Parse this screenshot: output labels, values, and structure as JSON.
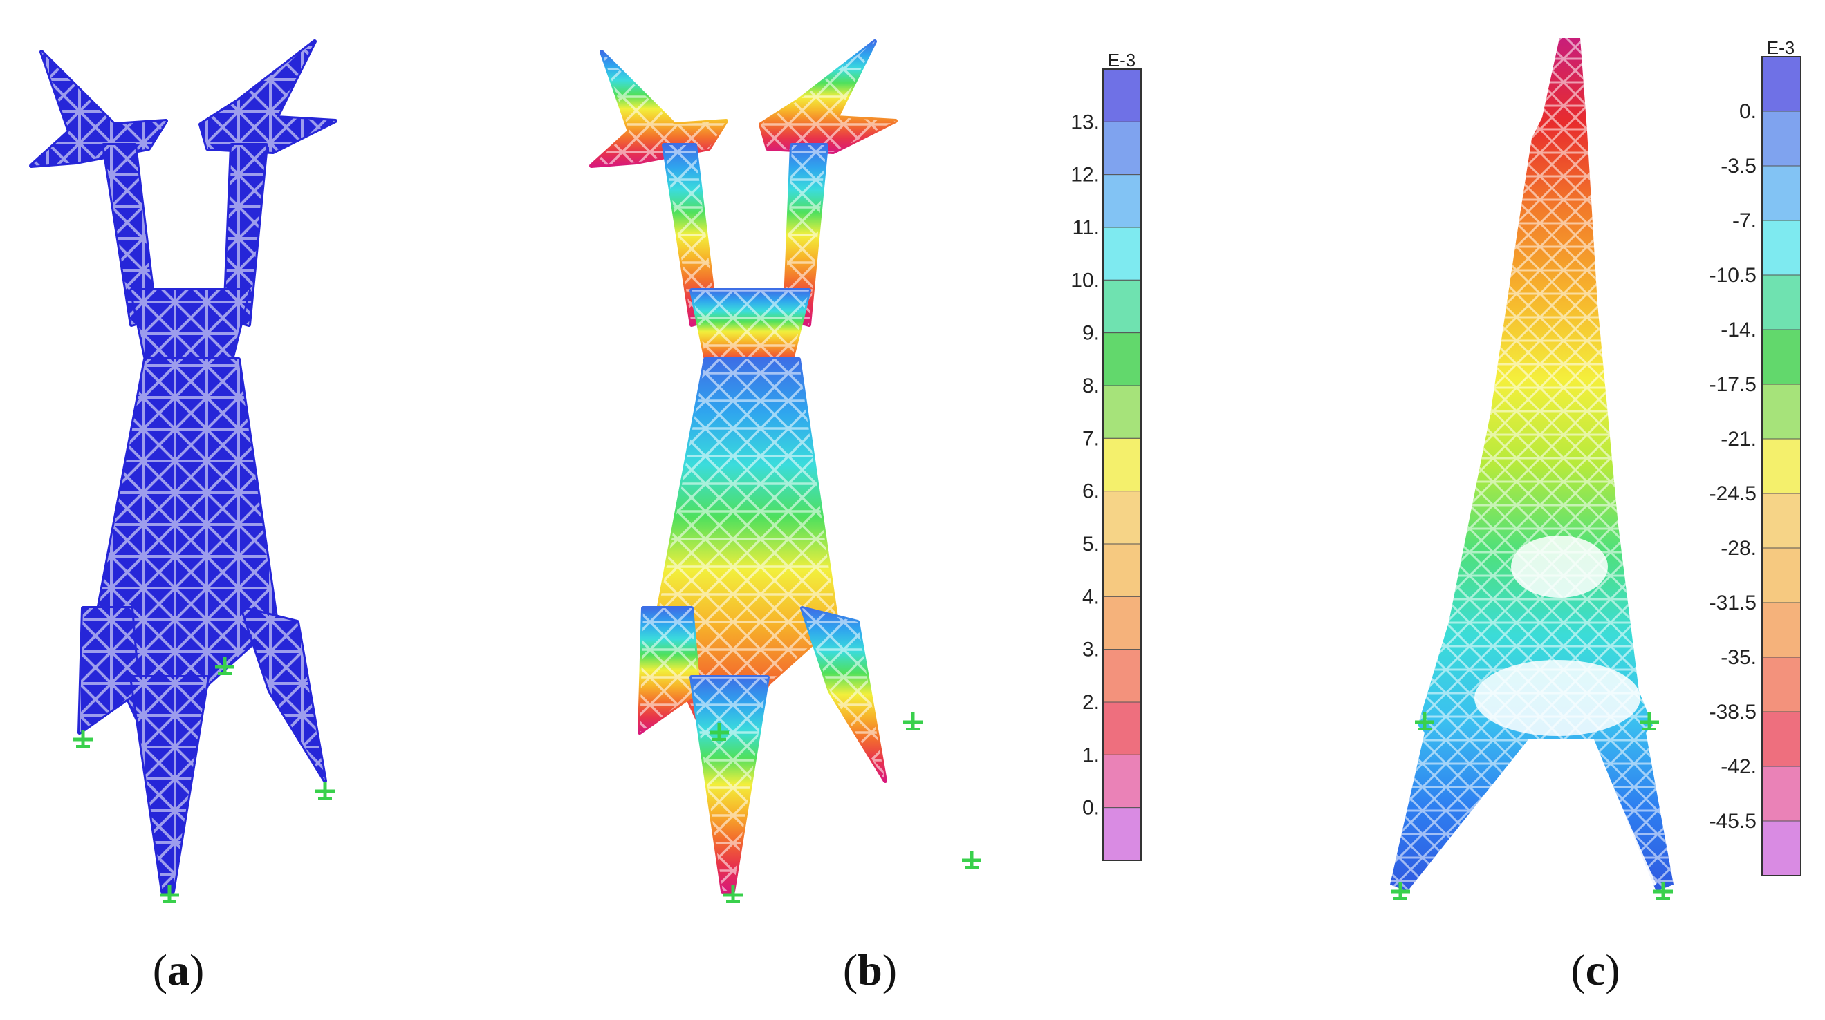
{
  "panels": [
    {
      "id": "a",
      "caption": "a",
      "tower_type": "double-cross-arm",
      "fill_color": "#2626d8",
      "support_color": "#39d04c",
      "has_colorbar": false
    },
    {
      "id": "b",
      "caption": "b",
      "tower_type": "double-cross-arm",
      "gradient": [
        "#d8197a",
        "#e8344a",
        "#f3702c",
        "#f7b52a",
        "#f2ef3c",
        "#4fe05d",
        "#3bdcdc",
        "#2fa5ee",
        "#3d6fe6"
      ],
      "support_color": "#39d04c",
      "has_colorbar": true,
      "colorbar": {
        "unit": "E-3",
        "ticks": [
          "13.",
          "12.",
          "11.",
          "10.",
          "9.",
          "8.",
          "7.",
          "6.",
          "5.",
          "4.",
          "3.",
          "2.",
          "1.",
          "0."
        ],
        "band_colors": [
          "#6f71e6",
          "#7fa3ef",
          "#82c3f4",
          "#7eeaf0",
          "#6fe2b0",
          "#62d86c",
          "#a6e37a",
          "#f4f06c",
          "#f6d487",
          "#f6c980",
          "#f5b27b",
          "#f3927c",
          "#ee6f7e",
          "#ea82b7",
          "#d98be3"
        ]
      }
    },
    {
      "id": "c",
      "caption": "c",
      "tower_type": "single-mast",
      "gradient": [
        "#2f58e0",
        "#2e7ff0",
        "#3bc0f0",
        "#3bdcd8",
        "#4fe07a",
        "#b6ea3c",
        "#f4ef3c",
        "#f6b42c",
        "#f27a2a",
        "#e82c2c",
        "#c81e7a"
      ],
      "support_color": "#39d04c",
      "has_colorbar": true,
      "colorbar": {
        "unit": "E-3",
        "ticks": [
          "0.",
          "-3.5",
          "-7.",
          "-10.5",
          "-14.",
          "-17.5",
          "-21.",
          "-24.5",
          "-28.",
          "-31.5",
          "-35.",
          "-38.5",
          "-42.",
          "-45.5"
        ],
        "band_colors": [
          "#6f71e6",
          "#7fa3ef",
          "#82c3f4",
          "#7eeaf0",
          "#6fe2b0",
          "#62d86c",
          "#a6e37a",
          "#f4f06c",
          "#f6d487",
          "#f6c980",
          "#f5b27b",
          "#f3927c",
          "#ee6f7e",
          "#ea82b7",
          "#d98be3"
        ]
      }
    }
  ]
}
